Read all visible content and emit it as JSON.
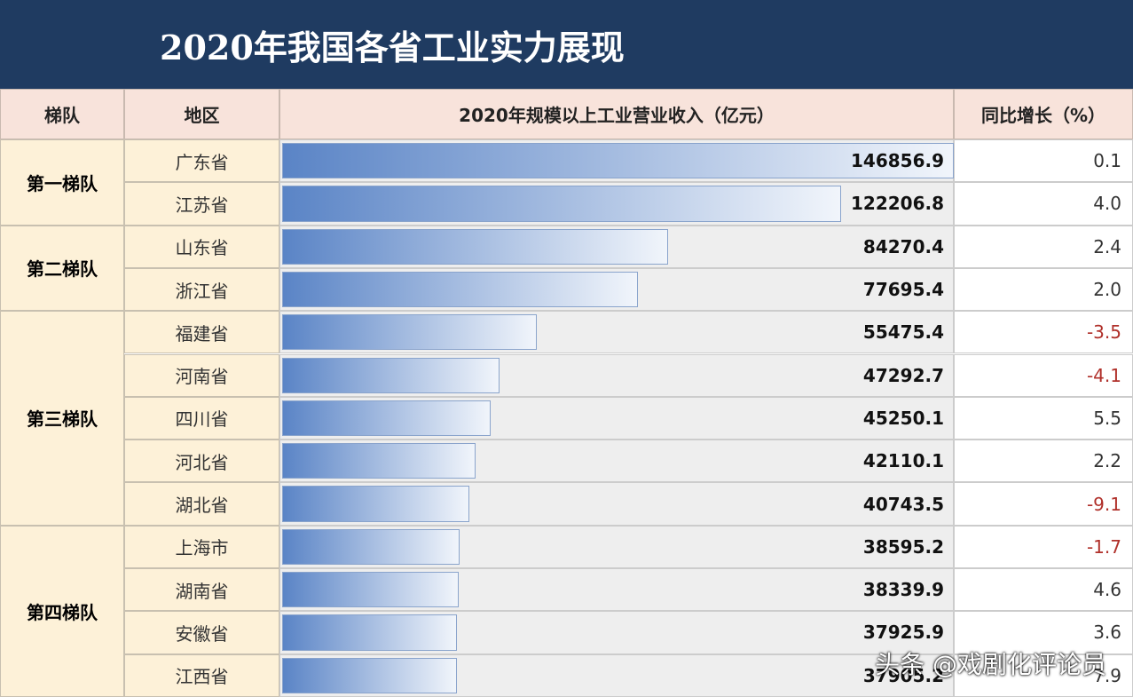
{
  "title": "2020年我国各省工业实力展现",
  "header": [
    "梯队",
    "地区",
    "2020年规模以上工业营业收入（亿元）",
    "同比增长（%）"
  ],
  "tiers": [
    {
      "name": "第一梯队",
      "rows": [
        {
          "region": "广东省",
          "revenue": 146856.9,
          "growth": "0.1"
        },
        {
          "region": "江苏省",
          "revenue": 122206.8,
          "growth": "4.0"
        }
      ]
    },
    {
      "name": "第二梯队",
      "rows": [
        {
          "region": "山东省",
          "revenue": 84270.4,
          "growth": "2.4"
        },
        {
          "region": "浙江省",
          "revenue": 77695.4,
          "growth": "2.0"
        }
      ]
    },
    {
      "name": "第三梯队",
      "rows": [
        {
          "region": "福建省",
          "revenue": 55475.4,
          "growth": "-3.5"
        },
        {
          "region": "河南省",
          "revenue": 47292.7,
          "growth": "-4.1"
        },
        {
          "region": "四川省",
          "revenue": 45250.1,
          "growth": "5.5"
        },
        {
          "region": "河北省",
          "revenue": 42110.1,
          "growth": "2.2"
        },
        {
          "region": "湖北省",
          "revenue": 40743.5,
          "growth": "-9.1"
        }
      ]
    },
    {
      "name": "第四梯队",
      "rows": [
        {
          "region": "上海市",
          "revenue": 38595.2,
          "growth": "-1.7"
        },
        {
          "region": "湖南省",
          "revenue": 38339.9,
          "growth": "4.6"
        },
        {
          "region": "安徽省",
          "revenue": 37925.9,
          "growth": "3.6"
        },
        {
          "region": "江西省",
          "revenue": 37905.2,
          "growth": "7.9"
        }
      ]
    }
  ],
  "watermark": "头条 @戏剧化评论员"
}
